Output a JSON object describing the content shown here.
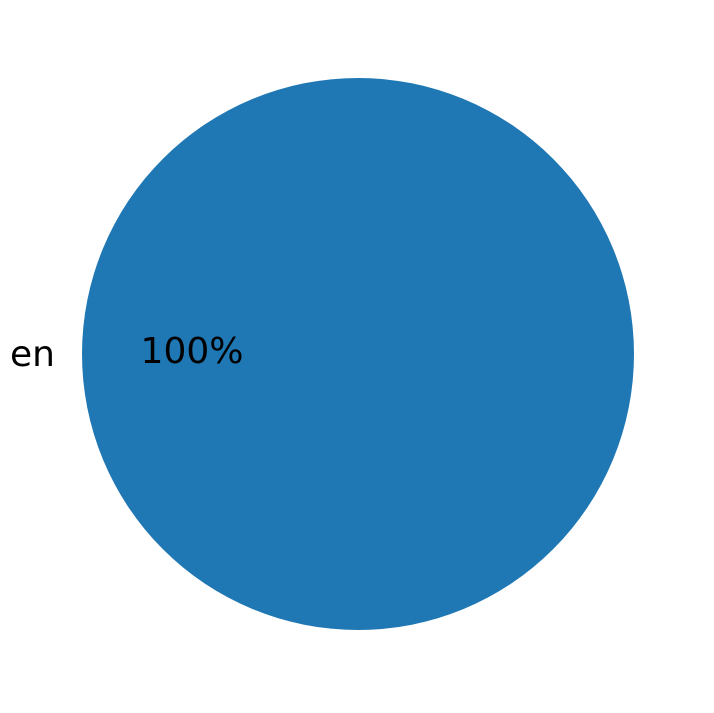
{
  "chart_data": {
    "type": "pie",
    "categories": [
      "en"
    ],
    "values": [
      100
    ],
    "autopct_labels": [
      "100%"
    ],
    "colors": [
      "#1f77b4"
    ],
    "title": "",
    "legend": false,
    "background": "#ffffff",
    "label_color": "#000000"
  }
}
